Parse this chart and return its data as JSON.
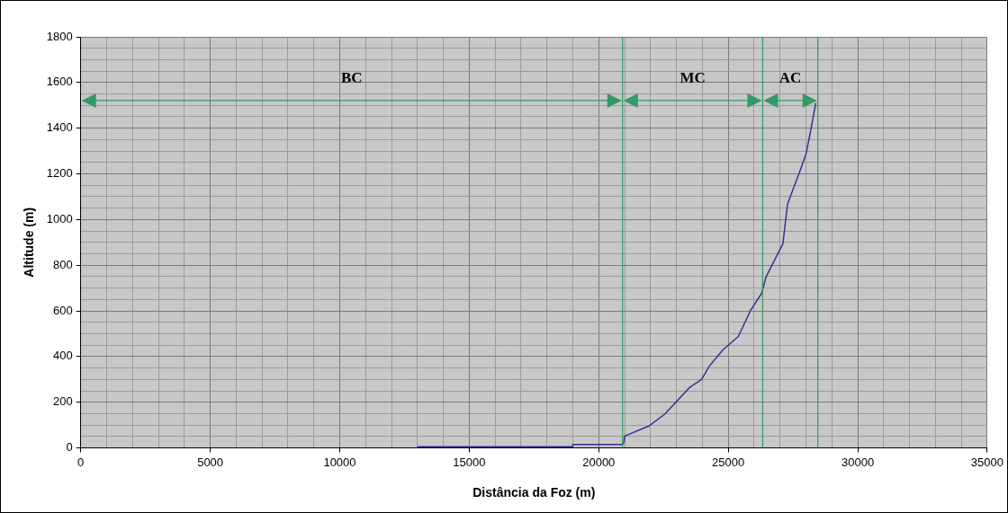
{
  "chart_data": {
    "type": "line",
    "xlabel": "Distância da Foz (m)",
    "ylabel": "Altitude (m)",
    "series": [
      {
        "color": "#333399",
        "x": [
          13000,
          19000,
          19000,
          20920,
          20970,
          21000,
          21950,
          22550,
          23500,
          23970,
          24270,
          24800,
          25390,
          25870,
          26290,
          26460,
          27110,
          27290,
          27770,
          28000,
          28180,
          28380
        ],
        "values": [
          5,
          5,
          15,
          15,
          26,
          52,
          97,
          148,
          264,
          300,
          358,
          430,
          488,
          604,
          677,
          749,
          894,
          1068,
          1213,
          1286,
          1387,
          1510
        ]
      }
    ],
    "xlim": [
      0,
      35000
    ],
    "ylim": [
      0,
      1800
    ],
    "xticks": [
      0,
      {
        "value": 1000,
        "label": null
      },
      {
        "value": 2000,
        "label": null
      },
      {
        "value": 3000,
        "label": null
      },
      {
        "value": 4000,
        "label": null
      },
      5000,
      {
        "value": 6000,
        "label": null
      },
      {
        "value": 7000,
        "label": null
      },
      {
        "value": 8000,
        "label": null
      },
      {
        "value": 9000,
        "label": null
      },
      10000,
      {
        "value": 11000,
        "label": null
      },
      {
        "value": 12000,
        "label": null
      },
      {
        "value": 13000,
        "label": null
      },
      {
        "value": 14000,
        "label": null
      },
      15000,
      {
        "value": 16000,
        "label": null
      },
      {
        "value": 17000,
        "label": null
      },
      {
        "value": 18000,
        "label": null
      },
      {
        "value": 19000,
        "label": null
      },
      20000,
      {
        "value": 21000,
        "label": null
      },
      {
        "value": 22000,
        "label": null
      },
      {
        "value": 23000,
        "label": null
      },
      {
        "value": 24000,
        "label": null
      },
      25000,
      {
        "value": 26000,
        "label": null
      },
      {
        "value": 27000,
        "label": null
      },
      {
        "value": 28000,
        "label": null
      },
      {
        "value": 29000,
        "label": null
      },
      30000,
      {
        "value": 31000,
        "label": null
      },
      {
        "value": 32000,
        "label": null
      },
      {
        "value": 33000,
        "label": null
      },
      {
        "value": 34000,
        "label": null
      },
      35000
    ],
    "yticks": [
      0,
      {
        "value": 50,
        "label": null
      },
      {
        "value": 100,
        "label": null
      },
      {
        "value": 150,
        "label": null
      },
      200,
      {
        "value": 250,
        "label": null
      },
      {
        "value": 300,
        "label": null
      },
      {
        "value": 350,
        "label": null
      },
      400,
      {
        "value": 450,
        "label": null
      },
      {
        "value": 500,
        "label": null
      },
      {
        "value": 550,
        "label": null
      },
      600,
      {
        "value": 650,
        "label": null
      },
      {
        "value": 700,
        "label": null
      },
      {
        "value": 750,
        "label": null
      },
      800,
      {
        "value": 850,
        "label": null
      },
      {
        "value": 900,
        "label": null
      },
      {
        "value": 950,
        "label": null
      },
      1000,
      {
        "value": 1050,
        "label": null
      },
      {
        "value": 1100,
        "label": null
      },
      {
        "value": 1150,
        "label": null
      },
      1200,
      {
        "value": 1250,
        "label": null
      },
      {
        "value": 1300,
        "label": null
      },
      {
        "value": 1350,
        "label": null
      },
      1400,
      {
        "value": 1450,
        "label": null
      },
      {
        "value": 1500,
        "label": null
      },
      {
        "value": 1550,
        "label": null
      },
      1600,
      {
        "value": 1650,
        "label": null
      },
      {
        "value": 1700,
        "label": null
      },
      {
        "value": 1750,
        "label": null
      },
      1800
    ],
    "ref_lines": [
      {
        "axis": "x",
        "value": 20920,
        "color": "#339966"
      },
      {
        "axis": "x",
        "value": 26330,
        "color": "#339966"
      },
      {
        "axis": "x",
        "value": 28460,
        "color": "#339966"
      }
    ],
    "annotations": [
      "BC",
      "MC",
      "AC"
    ],
    "grid": true,
    "legend": false,
    "marker": "none",
    "line_style": "solid"
  }
}
